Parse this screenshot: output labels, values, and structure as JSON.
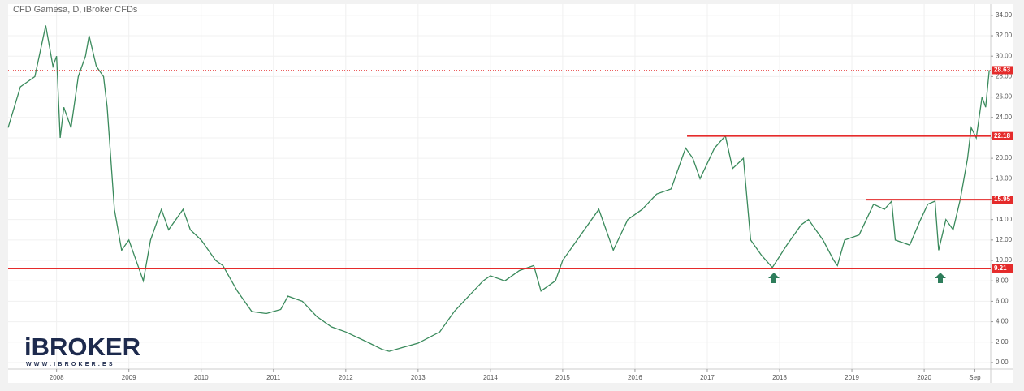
{
  "chart_data": {
    "type": "line",
    "title": "CFD Gamesa, D, iBroker CFDs",
    "brand": "iBROKER",
    "brand_url": "WWW.IBROKER.ES",
    "x": [
      2007.33,
      2007.5,
      2007.7,
      2007.85,
      2007.95,
      2008.0,
      2008.05,
      2008.1,
      2008.2,
      2008.3,
      2008.4,
      2008.45,
      2008.55,
      2008.65,
      2008.7,
      2008.8,
      2008.9,
      2009.0,
      2009.1,
      2009.2,
      2009.3,
      2009.45,
      2009.55,
      2009.75,
      2009.85,
      2010.0,
      2010.2,
      2010.3,
      2010.5,
      2010.7,
      2010.9,
      2011.1,
      2011.2,
      2011.4,
      2011.6,
      2011.8,
      2012.0,
      2012.3,
      2012.5,
      2012.6,
      2012.8,
      2013.0,
      2013.3,
      2013.5,
      2013.7,
      2013.9,
      2014.0,
      2014.2,
      2014.4,
      2014.6,
      2014.7,
      2014.9,
      2015.0,
      2015.2,
      2015.5,
      2015.6,
      2015.7,
      2015.9,
      2016.1,
      2016.3,
      2016.5,
      2016.7,
      2016.8,
      2016.9,
      2017.1,
      2017.25,
      2017.35,
      2017.5,
      2017.55,
      2017.6,
      2017.75,
      2017.9,
      2018.1,
      2018.3,
      2018.4,
      2018.6,
      2018.75,
      2018.8,
      2018.9,
      2019.1,
      2019.3,
      2019.45,
      2019.55,
      2019.6,
      2019.8,
      2019.95,
      2020.05,
      2020.15,
      2020.2,
      2020.3,
      2020.4,
      2020.5,
      2020.6,
      2020.65,
      2020.72,
      2020.8,
      2020.85,
      2020.9
    ],
    "values": [
      23,
      27,
      28,
      33,
      29,
      30,
      22,
      25,
      23,
      28,
      30,
      32,
      29,
      28,
      25,
      15,
      11,
      12,
      10,
      8,
      12,
      15,
      13,
      15,
      13,
      12,
      10,
      9.5,
      7,
      5,
      4.8,
      5.2,
      6.5,
      6,
      4.5,
      3.5,
      3,
      2,
      1.3,
      1.1,
      1.5,
      1.9,
      3,
      5,
      6.5,
      8,
      8.5,
      8,
      9,
      9.5,
      7,
      8,
      10,
      12,
      15,
      13,
      11,
      14,
      15,
      16.5,
      17,
      21,
      20,
      18,
      21,
      22.2,
      19,
      20,
      16,
      12,
      10.5,
      9.3,
      11.5,
      13.5,
      14,
      12,
      10,
      9.5,
      12,
      12.5,
      15.5,
      15,
      15.8,
      12,
      11.5,
      14,
      15.5,
      15.8,
      11,
      14,
      13,
      16,
      20,
      23,
      22,
      26,
      25,
      28.63
    ],
    "color": "#3a8a5c",
    "price_lines": [
      {
        "value": 22.18,
        "from": 2016.72
      },
      {
        "value": 15.95,
        "from": 2019.2
      },
      {
        "value": 9.21,
        "from": 2007.33
      }
    ],
    "last_price": 28.63,
    "xlim": [
      2007.33,
      2020.92
    ],
    "ylim": [
      -0.64,
      35.1
    ],
    "xticks": [
      2008,
      2009,
      2010,
      2011,
      2012,
      2013,
      2014,
      2015,
      2016,
      2017,
      2018,
      2019,
      2020,
      {
        "value": 2020.7,
        "label": "Sep"
      }
    ],
    "yticks": [
      {
        "value": 0,
        "label": "0.00"
      },
      {
        "value": 2,
        "label": "2.00"
      },
      {
        "value": 4,
        "label": "4.00"
      },
      {
        "value": 6,
        "label": "6.00"
      },
      {
        "value": 8,
        "label": "8.00"
      },
      {
        "value": 10,
        "label": "10.00"
      },
      {
        "value": 12,
        "label": "12.00"
      },
      {
        "value": 14,
        "label": "14.00"
      },
      {
        "value": 16,
        "label": "16.00"
      },
      {
        "value": 18,
        "label": "18.00"
      },
      {
        "value": 20,
        "label": "20.00"
      },
      {
        "value": 22,
        "label": "22.00"
      },
      {
        "value": 24,
        "label": "24.00"
      },
      {
        "value": 26,
        "label": "26.00"
      },
      {
        "value": 28,
        "label": "28.00"
      },
      {
        "value": 30,
        "label": "30.00"
      },
      {
        "value": 32,
        "label": "32.00"
      },
      {
        "value": 34,
        "label": "34.00"
      }
    ],
    "grid": true
  }
}
